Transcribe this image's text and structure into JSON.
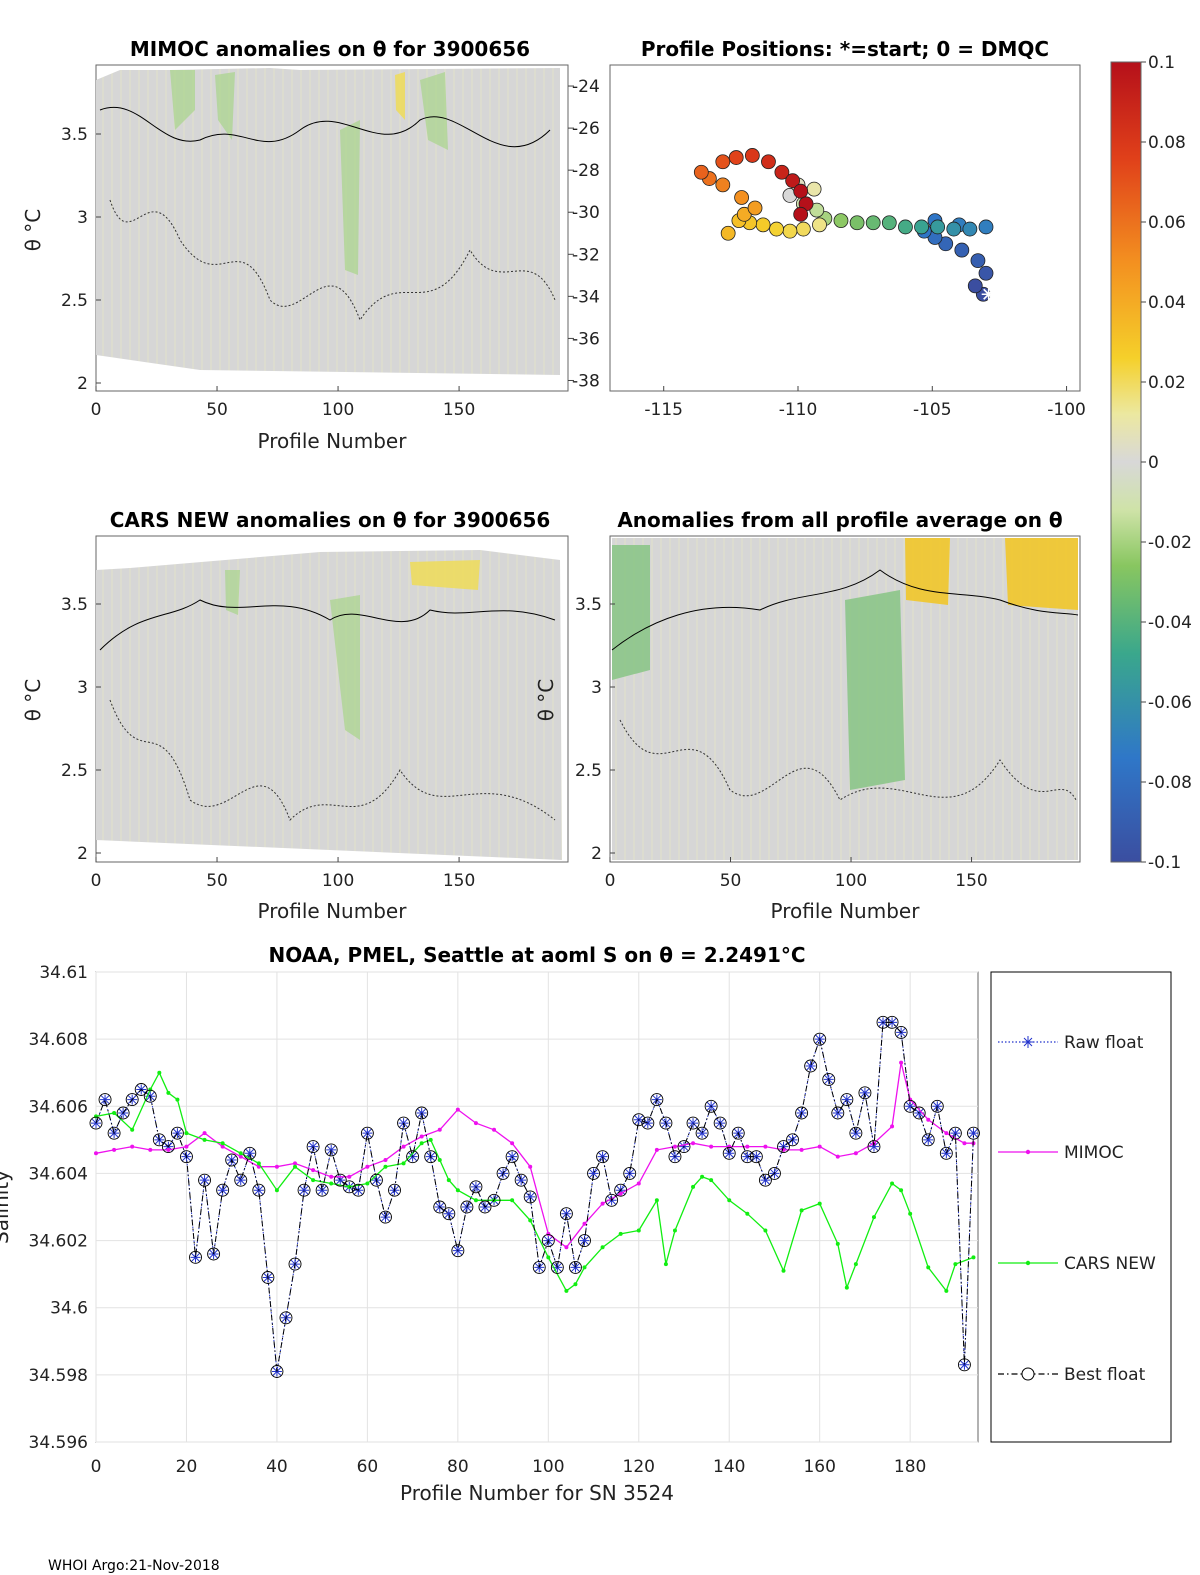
{
  "footer": "WHOI Argo:21-Nov-2018",
  "panels": {
    "mimoc": {
      "title": "MIMOC anomalies on θ  for 3900656",
      "xlabel": "Profile Number",
      "ylabel": "θ °C",
      "xticks": [
        "0",
        "50",
        "100",
        "150"
      ],
      "yticks": [
        "2",
        "2.5",
        "3",
        "3.5"
      ]
    },
    "positions": {
      "title": "Profile Positions: *=start; 0 = DMQC",
      "xticks": [
        "-115",
        "-110",
        "-105",
        "-100"
      ],
      "yticks": [
        "-24",
        "-26",
        "-28",
        "-30",
        "-32",
        "-34",
        "-36",
        "-38"
      ]
    },
    "cars": {
      "title": "CARS NEW anomalies on θ for 3900656",
      "xlabel": "Profile Number",
      "ylabel": "θ °C",
      "xticks": [
        "0",
        "50",
        "100",
        "150"
      ],
      "yticks": [
        "2",
        "2.5",
        "3",
        "3.5"
      ]
    },
    "allavg": {
      "title": "Anomalies from all profile average on θ",
      "xlabel": "Profile Number",
      "ylabel": "θ °C",
      "xticks": [
        "0",
        "50",
        "100",
        "150"
      ],
      "yticks": [
        "2",
        "2.5",
        "3",
        "3.5"
      ]
    }
  },
  "colorbar": {
    "ticks": [
      "0.1",
      "0.08",
      "0.06",
      "0.04",
      "0.02",
      "0",
      "-0.02",
      "-0.04",
      "-0.06",
      "-0.08",
      "-0.1"
    ]
  },
  "chart_data": [
    {
      "type": "line",
      "title": "NOAA, PMEL, Seattle at aoml S on θ = 2.2491°C",
      "xlabel": "Profile Number for SN 3524",
      "ylabel": "Salinity",
      "xlim": [
        0,
        195
      ],
      "ylim": [
        34.596,
        34.61
      ],
      "xticks": [
        "0",
        "20",
        "40",
        "60",
        "80",
        "100",
        "120",
        "140",
        "160",
        "180"
      ],
      "yticks": [
        "34.596",
        "34.598",
        "34.6",
        "34.602",
        "34.604",
        "34.606",
        "34.608",
        "34.61"
      ],
      "grid": true,
      "legend_position": "right-outside",
      "series": [
        {
          "name": "Raw float",
          "color": "#2233cc",
          "x": [
            0,
            2,
            4,
            6,
            8,
            10,
            12,
            14,
            16,
            18,
            20,
            22,
            24,
            26,
            28,
            30,
            32,
            34,
            36,
            38,
            40,
            42,
            44,
            46,
            48,
            50,
            52,
            54,
            56,
            58,
            60,
            62,
            64,
            66,
            68,
            70,
            72,
            74,
            76,
            78,
            80,
            82,
            84,
            86,
            88,
            90,
            92,
            94,
            96,
            98,
            100,
            102,
            104,
            106,
            108,
            110,
            112,
            114,
            116,
            118,
            120,
            122,
            124,
            126,
            128,
            130,
            132,
            134,
            136,
            138,
            140,
            142,
            144,
            146,
            148,
            150,
            152,
            154,
            156,
            158,
            160,
            162,
            164,
            166,
            168,
            170,
            172,
            174,
            176,
            178,
            180,
            182,
            184,
            186,
            188,
            190,
            192,
            194
          ],
          "y": [
            34.6055,
            34.6062,
            34.6052,
            34.6058,
            34.6062,
            34.6065,
            34.6063,
            34.605,
            34.6048,
            34.6052,
            34.6045,
            34.6015,
            34.6038,
            34.6016,
            34.6035,
            34.6044,
            34.6038,
            34.6046,
            34.6035,
            34.6009,
            34.5981,
            34.5997,
            34.6013,
            34.6035,
            34.6048,
            34.6035,
            34.6047,
            34.6038,
            34.6036,
            34.6035,
            34.6052,
            34.6038,
            34.6027,
            34.6035,
            34.6055,
            34.6045,
            34.6058,
            34.6045,
            34.603,
            34.6028,
            34.6017,
            34.603,
            34.6036,
            34.603,
            34.6032,
            34.604,
            34.6045,
            34.6038,
            34.6033,
            34.6012,
            34.602,
            34.6012,
            34.6028,
            34.6012,
            34.602,
            34.604,
            34.6045,
            34.6032,
            34.6035,
            34.604,
            34.6056,
            34.6055,
            34.6062,
            34.6055,
            34.6045,
            34.6048,
            34.6055,
            34.6052,
            34.606,
            34.6055,
            34.6046,
            34.6052,
            34.6045,
            34.6045,
            34.6038,
            34.604,
            34.6048,
            34.605,
            34.6058,
            34.6072,
            34.608,
            34.6068,
            34.6058,
            34.6062,
            34.6052,
            34.6064,
            34.6048,
            34.6085,
            34.6085,
            34.6082,
            34.606,
            34.6058,
            34.605,
            34.606,
            34.6046,
            34.6052,
            34.5983,
            34.6052
          ]
        },
        {
          "name": "MIMOC",
          "color": "#ee11ee",
          "x": [
            0,
            4,
            8,
            12,
            16,
            20,
            24,
            28,
            32,
            36,
            40,
            44,
            48,
            52,
            56,
            60,
            64,
            68,
            72,
            76,
            80,
            84,
            88,
            92,
            96,
            100,
            104,
            108,
            112,
            116,
            120,
            124,
            128,
            132,
            136,
            140,
            144,
            148,
            152,
            156,
            160,
            164,
            168,
            172,
            176,
            178,
            180,
            184,
            188,
            192,
            194
          ],
          "y": [
            34.6046,
            34.6047,
            34.6048,
            34.6047,
            34.6047,
            34.6048,
            34.6052,
            34.6048,
            34.6045,
            34.6042,
            34.6042,
            34.6043,
            34.6041,
            34.6039,
            34.6039,
            34.6042,
            34.6044,
            34.6048,
            34.6051,
            34.6053,
            34.6059,
            34.6055,
            34.6053,
            34.6049,
            34.6042,
            34.6022,
            34.6018,
            34.6025,
            34.6031,
            34.6034,
            34.6037,
            34.6047,
            34.6048,
            34.6049,
            34.6048,
            34.6048,
            34.6048,
            34.6048,
            34.6047,
            34.6047,
            34.6048,
            34.6045,
            34.6046,
            34.6049,
            34.6054,
            34.6073,
            34.6062,
            34.6056,
            34.6052,
            34.6049,
            34.6049
          ]
        },
        {
          "name": "CARS NEW",
          "color": "#11ee11",
          "x": [
            0,
            4,
            8,
            12,
            14,
            16,
            18,
            20,
            24,
            28,
            32,
            36,
            40,
            44,
            48,
            52,
            56,
            60,
            64,
            68,
            72,
            74,
            76,
            78,
            80,
            84,
            88,
            92,
            96,
            100,
            104,
            106,
            108,
            112,
            116,
            120,
            124,
            126,
            128,
            132,
            134,
            136,
            140,
            144,
            148,
            152,
            156,
            160,
            164,
            166,
            168,
            172,
            176,
            178,
            180,
            184,
            188,
            190,
            194
          ],
          "y": [
            34.6057,
            34.6058,
            34.6053,
            34.6065,
            34.607,
            34.6064,
            34.6062,
            34.6052,
            34.605,
            34.6049,
            34.6046,
            34.6043,
            34.6035,
            34.6042,
            34.6038,
            34.6037,
            34.6036,
            34.6037,
            34.6042,
            34.6043,
            34.6049,
            34.605,
            34.6044,
            34.6038,
            34.6035,
            34.6032,
            34.6032,
            34.6032,
            34.6026,
            34.6015,
            34.6005,
            34.6007,
            34.6012,
            34.6018,
            34.6022,
            34.6023,
            34.6032,
            34.6013,
            34.6023,
            34.6036,
            34.6039,
            34.6038,
            34.6032,
            34.6028,
            34.6023,
            34.6011,
            34.6029,
            34.6031,
            34.6019,
            34.6006,
            34.6013,
            34.6027,
            34.6037,
            34.6035,
            34.6028,
            34.6012,
            34.6005,
            34.6013,
            34.6015
          ]
        },
        {
          "name": "Best float",
          "color": "#000000",
          "x": [
            0,
            2,
            4,
            6,
            8,
            10,
            12,
            14,
            16,
            18,
            20,
            22,
            24,
            26,
            28,
            30,
            32,
            34,
            36,
            38,
            40,
            42,
            44,
            46,
            48,
            50,
            52,
            54,
            56,
            58,
            60,
            62,
            64,
            66,
            68,
            70,
            72,
            74,
            76,
            78,
            80,
            82,
            84,
            86,
            88,
            90,
            92,
            94,
            96,
            98,
            100,
            102,
            104,
            106,
            108,
            110,
            112,
            114,
            116,
            118,
            120,
            122,
            124,
            126,
            128,
            130,
            132,
            134,
            136,
            138,
            140,
            142,
            144,
            146,
            148,
            150,
            152,
            154,
            156,
            158,
            160,
            162,
            164,
            166,
            168,
            170,
            172,
            174,
            176,
            178,
            180,
            182,
            184,
            186,
            188,
            190,
            192,
            194
          ],
          "y": [
            34.6055,
            34.6062,
            34.6052,
            34.6058,
            34.6062,
            34.6065,
            34.6063,
            34.605,
            34.6048,
            34.6052,
            34.6045,
            34.6015,
            34.6038,
            34.6016,
            34.6035,
            34.6044,
            34.6038,
            34.6046,
            34.6035,
            34.6009,
            34.5981,
            34.5997,
            34.6013,
            34.6035,
            34.6048,
            34.6035,
            34.6047,
            34.6038,
            34.6036,
            34.6035,
            34.6052,
            34.6038,
            34.6027,
            34.6035,
            34.6055,
            34.6045,
            34.6058,
            34.6045,
            34.603,
            34.6028,
            34.6017,
            34.603,
            34.6036,
            34.603,
            34.6032,
            34.604,
            34.6045,
            34.6038,
            34.6033,
            34.6012,
            34.602,
            34.6012,
            34.6028,
            34.6012,
            34.602,
            34.604,
            34.6045,
            34.6032,
            34.6035,
            34.604,
            34.6056,
            34.6055,
            34.6062,
            34.6055,
            34.6045,
            34.6048,
            34.6055,
            34.6052,
            34.606,
            34.6055,
            34.6046,
            34.6052,
            34.6045,
            34.6045,
            34.6038,
            34.604,
            34.6048,
            34.605,
            34.6058,
            34.6072,
            34.608,
            34.6068,
            34.6058,
            34.6062,
            34.6052,
            34.6064,
            34.6048,
            34.6085,
            34.6085,
            34.6082,
            34.606,
            34.6058,
            34.605,
            34.606,
            34.6046,
            34.6052,
            34.5983,
            34.6052
          ]
        }
      ]
    },
    {
      "type": "scatter",
      "title": "Profile Positions: *=start; 0 = DMQC",
      "xlim": [
        -117,
        -99.5
      ],
      "ylim": [
        -38.5,
        -23
      ],
      "x": [
        -103.1,
        -103.4,
        -103.0,
        -103.3,
        -103.9,
        -104.5,
        -104.9,
        -105.3,
        -104.9,
        -104.0,
        -103.0,
        -103.6,
        -104.2,
        -104.8,
        -105.4,
        -106.0,
        -106.6,
        -107.2,
        -107.8,
        -108.4,
        -109.0,
        -109.3,
        -109.8,
        -110.3,
        -110.0,
        -109.4,
        -109.2,
        -109.8,
        -110.3,
        -110.8,
        -111.3,
        -111.8,
        -112.2,
        -112.6,
        -112.0,
        -111.6,
        -112.1,
        -112.8,
        -113.3,
        -113.6,
        -112.8,
        -112.3,
        -111.7,
        -111.1,
        -110.6,
        -110.2,
        -109.9,
        -109.7,
        -109.9
      ],
      "y": [
        -33.9,
        -33.5,
        -32.9,
        -32.3,
        -31.8,
        -31.5,
        -31.2,
        -30.9,
        -30.4,
        -30.6,
        -30.7,
        -30.8,
        -30.8,
        -30.7,
        -30.7,
        -30.7,
        -30.5,
        -30.5,
        -30.5,
        -30.4,
        -30.3,
        -29.9,
        -29.6,
        -29.2,
        -28.7,
        -28.9,
        -30.6,
        -30.8,
        -30.9,
        -30.8,
        -30.6,
        -30.5,
        -30.4,
        -31.0,
        -30.1,
        -29.8,
        -29.3,
        -28.7,
        -28.4,
        -28.1,
        -27.6,
        -27.4,
        -27.3,
        -27.6,
        -28.1,
        -28.5,
        -29.0,
        -29.6,
        -30.1
      ],
      "c": [
        -0.1,
        -0.1,
        -0.095,
        -0.09,
        -0.088,
        -0.085,
        -0.08,
        -0.075,
        -0.075,
        -0.07,
        -0.07,
        -0.065,
        -0.06,
        -0.055,
        -0.05,
        -0.045,
        -0.04,
        -0.035,
        -0.03,
        -0.025,
        -0.02,
        -0.015,
        -0.01,
        0.0,
        0.005,
        0.01,
        0.015,
        0.02,
        0.022,
        0.025,
        0.028,
        0.03,
        0.032,
        0.035,
        0.04,
        0.045,
        0.05,
        0.055,
        0.06,
        0.065,
        0.07,
        0.075,
        0.08,
        0.085,
        0.09,
        0.095,
        0.1,
        0.1,
        0.1
      ],
      "start": {
        "x": -102.9,
        "y": -33.9
      }
    }
  ]
}
